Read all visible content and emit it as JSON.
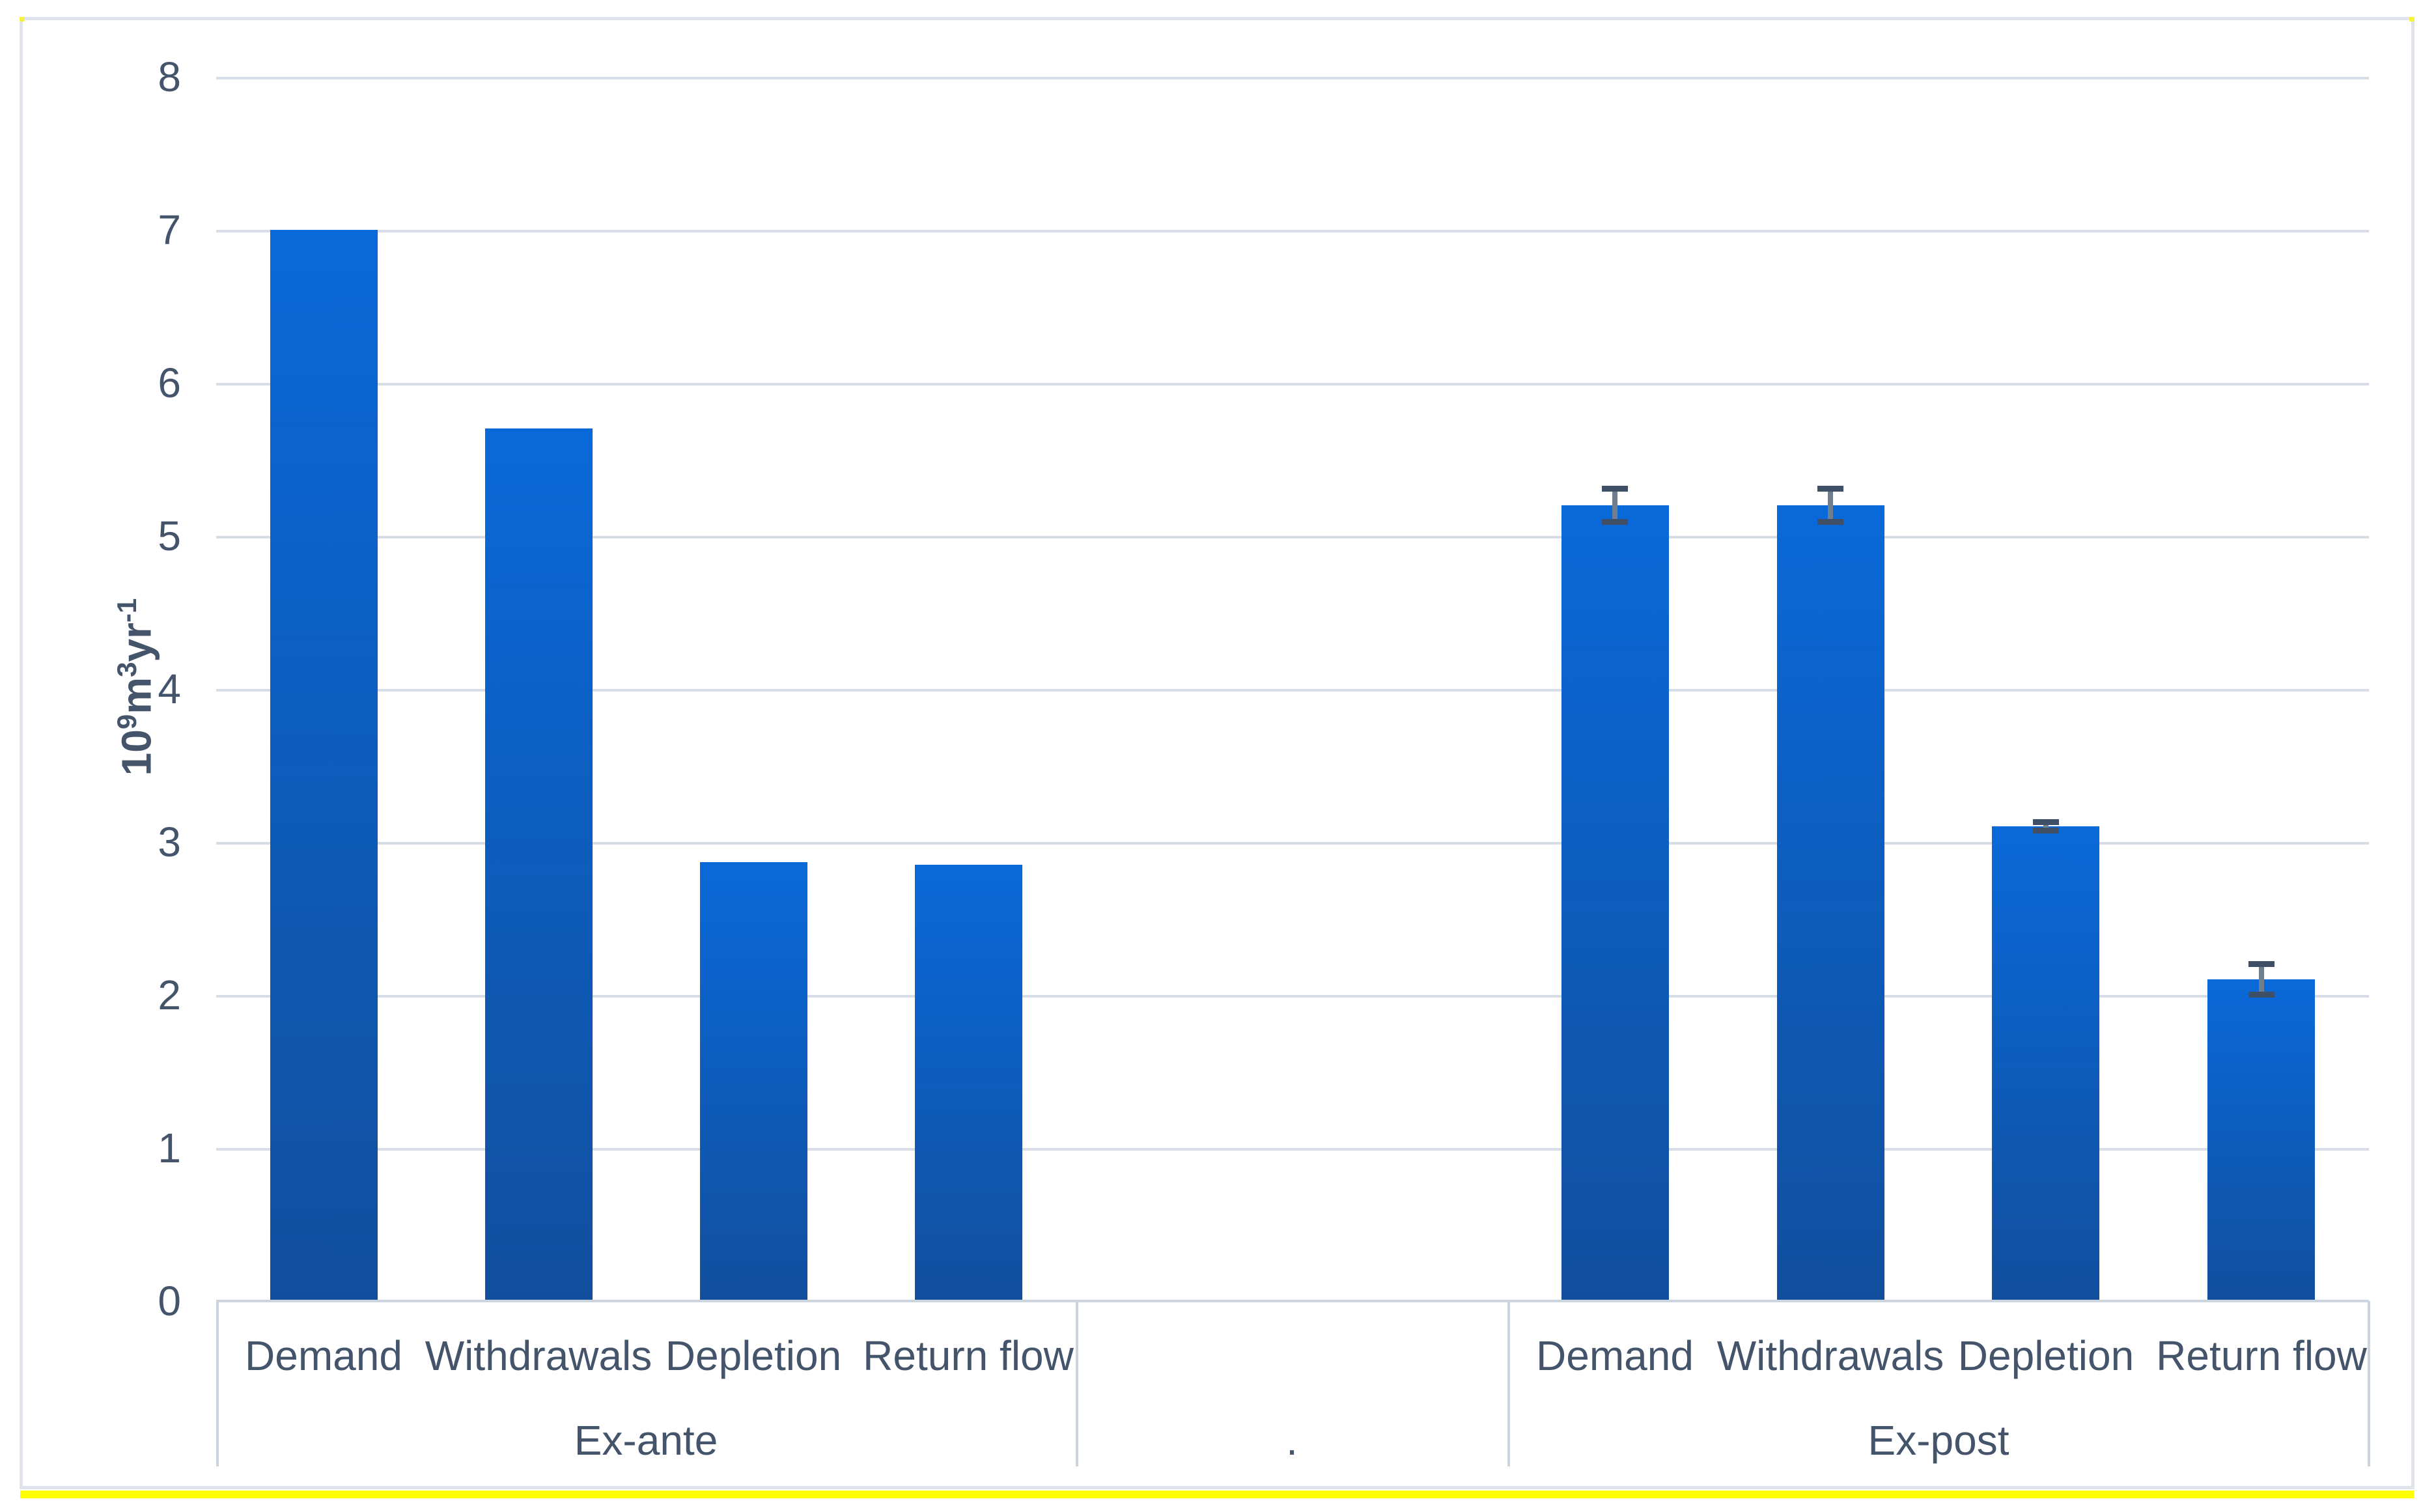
{
  "chart_data": {
    "type": "bar",
    "title": "",
    "grid": true,
    "legend": null,
    "y_axis": {
      "label_text": "10⁹m³yr⁻¹",
      "label_parts": [
        {
          "text": "10",
          "sup": false
        },
        {
          "text": "9",
          "sup": true
        },
        {
          "text": "m",
          "sup": false
        },
        {
          "text": "3",
          "sup": true
        },
        {
          "text": "yr",
          "sup": false
        },
        {
          "text": "-1",
          "sup": true
        }
      ],
      "ticks": [
        0,
        1,
        2,
        3,
        4,
        5,
        6,
        7,
        8
      ],
      "min": 0,
      "max": 8
    },
    "groups": [
      {
        "label": "Ex-ante",
        "categories": [
          "Demand",
          "Withdrawals",
          "Depletion",
          "Return flow"
        ],
        "values": [
          7.0,
          5.7,
          2.87,
          2.85
        ],
        "errors": [
          null,
          null,
          null,
          null
        ]
      },
      {
        "label": ".",
        "categories": [],
        "values": [],
        "errors": []
      },
      {
        "label": "Ex-post",
        "categories": [
          "Demand",
          "Withdrawals",
          "Depletion",
          "Return flow"
        ],
        "values": [
          5.2,
          5.2,
          3.1,
          2.1
        ],
        "errors": [
          0.11,
          0.11,
          0.03,
          0.1
        ]
      }
    ]
  },
  "colors": {
    "bar_gradient_top": "#0a69d9",
    "bar_gradient_bottom": "#114f9e",
    "error_stem": "#6f7f90",
    "error_cap": "#3f5066",
    "gridline": "#d7dde6",
    "axis_line": "#ccd4de",
    "frame_border": "#dfe4ec",
    "text": "#44546a",
    "highlight": "#ffff00"
  }
}
